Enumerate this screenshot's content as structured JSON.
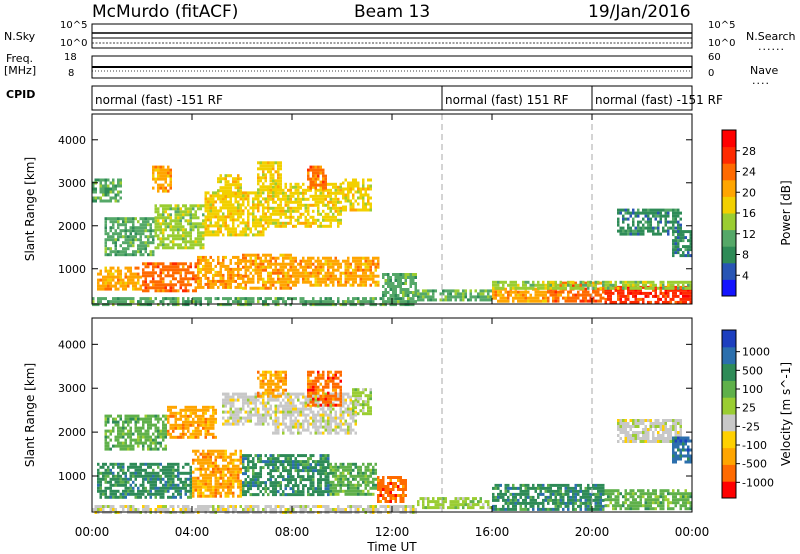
{
  "header": {
    "title": "McMurdo (fitACF)",
    "beam": "Beam 13",
    "date": "19/Jan/2016"
  },
  "strip_labels": {
    "nsky": "N.Sky",
    "freq": "Freq.",
    "mhz": "[MHz]",
    "cpid": "CPID",
    "nsearch": "N.Search",
    "nave": "Nave",
    "nsky_ticks": [
      "10^5",
      "10^0"
    ],
    "nsearch_ticks": [
      "10^5",
      "10^0"
    ],
    "freq_ticks": [
      "18",
      "8"
    ],
    "nave_ticks": [
      "60",
      "0"
    ],
    "dots": "......",
    "dots_short": "...."
  },
  "cpid_segments": [
    {
      "label": "normal (fast) -151 RF",
      "start_hour": 0,
      "end_hour": 14
    },
    {
      "label": "normal (fast) 151 RF",
      "start_hour": 14,
      "end_hour": 20
    },
    {
      "label": "normal (fast) -151 RF",
      "start_hour": 20,
      "end_hour": 24
    }
  ],
  "chart_data": [
    {
      "type": "heatmap",
      "name": "Power",
      "ylabel": "Slant Range [km]",
      "xlabel": "Time UT",
      "x_ticks": [
        "00:00",
        "04:00",
        "08:00",
        "12:00",
        "16:00",
        "20:00",
        "00:00"
      ],
      "xlim_hours": [
        0,
        24
      ],
      "y_ticks": [
        1000,
        2000,
        3000,
        4000
      ],
      "ylim": [
        180,
        4600
      ],
      "colorbar": {
        "label": "Power [dB]",
        "ticks": [
          4,
          8,
          12,
          16,
          20,
          24,
          28
        ],
        "range": [
          0,
          32
        ],
        "colors": [
          "#1414ff",
          "#2855b4",
          "#2e8b57",
          "#55a868",
          "#9acd32",
          "#f2d000",
          "#ffa500",
          "#ff6a00",
          "#ff2a00",
          "#ff0000"
        ]
      },
      "vertical_markers_hours": [
        14,
        20
      ],
      "regions": [
        {
          "t0": 0.0,
          "t1": 13.0,
          "r0": 200,
          "r1": 340,
          "v": 10
        },
        {
          "t0": 0.2,
          "t1": 2.0,
          "r0": 520,
          "r1": 1050,
          "v": 20
        },
        {
          "t0": 2.0,
          "t1": 4.2,
          "r0": 460,
          "r1": 1150,
          "v": 24
        },
        {
          "t0": 4.2,
          "t1": 6.0,
          "r0": 560,
          "r1": 1300,
          "v": 22
        },
        {
          "t0": 6.0,
          "t1": 8.0,
          "r0": 520,
          "r1": 1350,
          "v": 20
        },
        {
          "t0": 8.0,
          "t1": 11.5,
          "r0": 640,
          "r1": 1280,
          "v": 22
        },
        {
          "t0": 0.5,
          "t1": 2.5,
          "r0": 1300,
          "r1": 2200,
          "v": 12
        },
        {
          "t0": 2.5,
          "t1": 4.5,
          "r0": 1500,
          "r1": 2500,
          "v": 14
        },
        {
          "t0": 4.5,
          "t1": 7.0,
          "r0": 1800,
          "r1": 2800,
          "v": 16
        },
        {
          "t0": 7.0,
          "t1": 10.0,
          "r0": 2000,
          "r1": 3000,
          "v": 18
        },
        {
          "t0": 0.0,
          "t1": 1.2,
          "r0": 2600,
          "r1": 3100,
          "v": 10
        },
        {
          "t0": 2.4,
          "t1": 3.2,
          "r0": 2800,
          "r1": 3400,
          "v": 20
        },
        {
          "t0": 5.0,
          "t1": 6.0,
          "r0": 2700,
          "r1": 3200,
          "v": 18
        },
        {
          "t0": 6.6,
          "t1": 7.6,
          "r0": 2800,
          "r1": 3500,
          "v": 18
        },
        {
          "t0": 8.6,
          "t1": 9.4,
          "r0": 2900,
          "r1": 3400,
          "v": 26
        },
        {
          "t0": 10.0,
          "t1": 11.2,
          "r0": 2400,
          "r1": 3100,
          "v": 16
        },
        {
          "t0": 11.6,
          "t1": 13.0,
          "r0": 400,
          "r1": 900,
          "v": 12
        },
        {
          "t0": 13.0,
          "t1": 16.0,
          "r0": 250,
          "r1": 520,
          "v": 10
        },
        {
          "t0": 16.0,
          "t1": 18.2,
          "r0": 240,
          "r1": 560,
          "v": 20
        },
        {
          "t0": 18.2,
          "t1": 20.5,
          "r0": 240,
          "r1": 700,
          "v": 26
        },
        {
          "t0": 20.5,
          "t1": 24.0,
          "r0": 240,
          "r1": 600,
          "v": 28
        },
        {
          "t0": 16.0,
          "t1": 24.0,
          "r0": 560,
          "r1": 720,
          "v": 14
        },
        {
          "t0": 21.0,
          "t1": 23.6,
          "r0": 1800,
          "r1": 2400,
          "v": 8
        },
        {
          "t0": 23.2,
          "t1": 24.0,
          "r0": 1300,
          "r1": 1900,
          "v": 8
        }
      ]
    },
    {
      "type": "heatmap",
      "name": "Velocity",
      "ylabel": "Slant Range [km]",
      "xlabel": "Time UT",
      "x_ticks": [
        "00:00",
        "04:00",
        "08:00",
        "12:00",
        "16:00",
        "20:00",
        "00:00"
      ],
      "xlim_hours": [
        0,
        24
      ],
      "y_ticks": [
        1000,
        2000,
        3000,
        4000
      ],
      "ylim": [
        180,
        4600
      ],
      "colorbar": {
        "label": "Velocity [m s^-1]",
        "ticks": [
          "1000",
          "500",
          "100",
          "25",
          "-25",
          "-100",
          "-500",
          "-1000"
        ],
        "colors": [
          "#1d3fbf",
          "#2b6fad",
          "#2e8b57",
          "#5fb04a",
          "#9acd32",
          "#c8c8c8",
          "#ffd000",
          "#ffa500",
          "#ff6a00",
          "#ff0000"
        ]
      },
      "vertical_markers_hours": [
        14,
        20
      ],
      "regions": [
        {
          "t0": 0.0,
          "t1": 13.0,
          "r0": 200,
          "r1": 340,
          "v": 5
        },
        {
          "t0": 0.2,
          "t1": 4.0,
          "r0": 500,
          "r1": 1300,
          "v": 2
        },
        {
          "t0": 4.0,
          "t1": 6.0,
          "r0": 560,
          "r1": 1600,
          "v": 7
        },
        {
          "t0": 6.0,
          "t1": 9.5,
          "r0": 600,
          "r1": 1500,
          "v": 2
        },
        {
          "t0": 9.5,
          "t1": 11.4,
          "r0": 600,
          "r1": 1300,
          "v": 3
        },
        {
          "t0": 11.4,
          "t1": 12.6,
          "r0": 400,
          "r1": 1000,
          "v": 8
        },
        {
          "t0": 0.5,
          "t1": 3.0,
          "r0": 1600,
          "r1": 2400,
          "v": 3
        },
        {
          "t0": 3.0,
          "t1": 5.0,
          "r0": 1900,
          "r1": 2600,
          "v": 7
        },
        {
          "t0": 5.2,
          "t1": 7.2,
          "r0": 2200,
          "r1": 2900,
          "v": 5
        },
        {
          "t0": 7.2,
          "t1": 10.6,
          "r0": 2000,
          "r1": 2900,
          "v": 5
        },
        {
          "t0": 8.6,
          "t1": 10.0,
          "r0": 2600,
          "r1": 3400,
          "v": 8
        },
        {
          "t0": 10.4,
          "t1": 11.2,
          "r0": 2400,
          "r1": 3000,
          "v": 4
        },
        {
          "t0": 6.6,
          "t1": 7.8,
          "r0": 2800,
          "r1": 3400,
          "v": 7
        },
        {
          "t0": 13.0,
          "t1": 16.0,
          "r0": 250,
          "r1": 520,
          "v": 4
        },
        {
          "t0": 16.0,
          "t1": 20.5,
          "r0": 250,
          "r1": 820,
          "v": 2
        },
        {
          "t0": 20.5,
          "t1": 24.0,
          "r0": 250,
          "r1": 700,
          "v": 3
        },
        {
          "t0": 21.0,
          "t1": 23.6,
          "r0": 1800,
          "r1": 2300,
          "v": 5
        },
        {
          "t0": 23.2,
          "t1": 24.0,
          "r0": 1300,
          "r1": 1900,
          "v": 1
        }
      ]
    }
  ]
}
